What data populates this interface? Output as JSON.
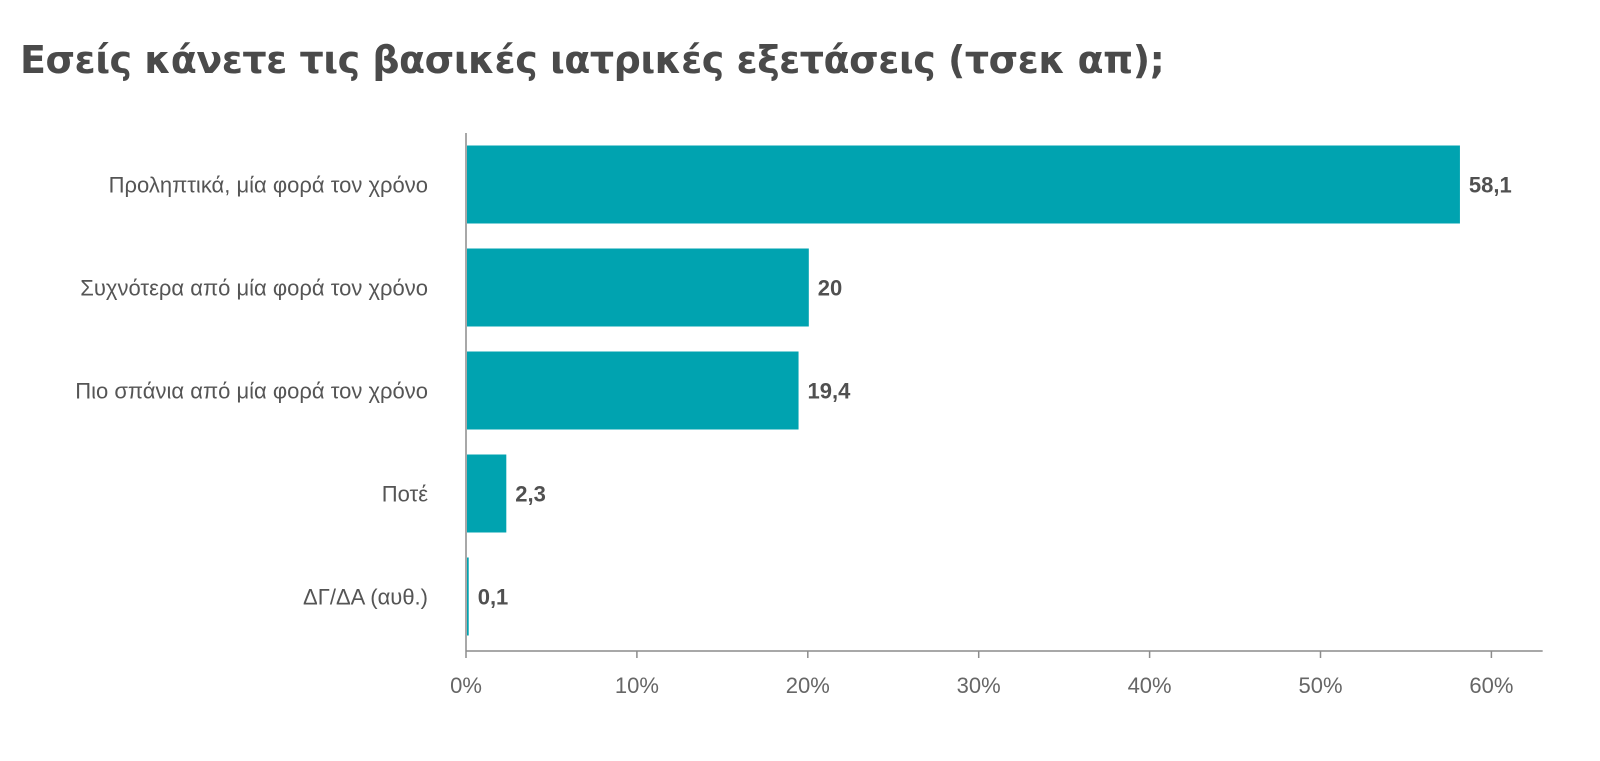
{
  "chart_data": {
    "type": "bar",
    "orientation": "horizontal",
    "title": "Εσείς κάνετε τις βασικές ιατρικές εξετάσεις (τσεκ απ);",
    "categories": [
      "Προληπτικά, μία φορά τον χρόνο",
      "Συχνότερα από μία φορά τον χρόνο",
      "Πιο σπάνια από μία φορά τον χρόνο",
      "Ποτέ",
      "ΔΓ/ΔΑ (αυθ.)"
    ],
    "values": [
      58.1,
      20,
      19.4,
      2.3,
      0.1
    ],
    "value_labels": [
      "58,1",
      "20",
      "19,4",
      "2,3",
      "0,1"
    ],
    "x_ticks": [
      0,
      10,
      20,
      30,
      40,
      50,
      60
    ],
    "x_tick_labels": [
      "0%",
      "10%",
      "20%",
      "30%",
      "40%",
      "50%",
      "60%"
    ],
    "xlim": [
      0,
      63
    ],
    "xlabel": "",
    "ylabel": "",
    "grid": false,
    "legend": "none",
    "bar_color": "#00a3b0",
    "axis_color": "#8c8c8c"
  }
}
